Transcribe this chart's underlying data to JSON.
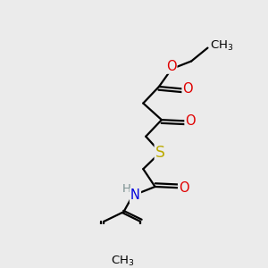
{
  "background_color": "#ebebeb",
  "bond_color": "#000000",
  "bond_width": 1.6,
  "atom_colors": {
    "C": "#000000",
    "O": "#e00000",
    "N": "#0000dd",
    "S": "#bbaa00",
    "H": "#7a9090"
  },
  "font_size": 10.5,
  "figsize": [
    3.0,
    3.0
  ],
  "dpi": 100,
  "xlim": [
    0.0,
    1.0
  ],
  "ylim": [
    0.0,
    1.0
  ]
}
